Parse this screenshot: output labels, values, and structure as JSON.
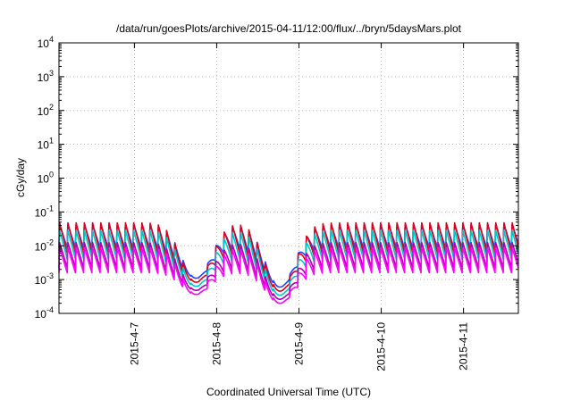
{
  "chart_data": {
    "type": "line",
    "title": "/data/run/goesPlots/archive/2015-04-11/12:00/flux/../bryn/5daysMars.plot",
    "xlabel": "Coordinated Universal Time (UTC)",
    "ylabel": "cGy/day",
    "log_y": true,
    "ylim": [
      0.0001,
      10000
    ],
    "y_tick_exponents": [
      -4,
      -3,
      -2,
      -1,
      0,
      1,
      2,
      3,
      4
    ],
    "y_tick_base": "10",
    "xlim": [
      "2015-04-06T02:00",
      "2015-04-11T16:00"
    ],
    "x_ticks": [
      {
        "date": "2015-04-07T00:00",
        "label": "2015-4-7"
      },
      {
        "date": "2015-04-08T00:00",
        "label": "2015-4-8"
      },
      {
        "date": "2015-04-09T00:00",
        "label": "2015-4-9"
      },
      {
        "date": "2015-04-10T00:00",
        "label": "2015-4-10"
      },
      {
        "date": "2015-04-11T00:00",
        "label": "2015-4-11"
      }
    ],
    "grid": true,
    "cycle_hours": 2.4,
    "series": [
      {
        "color": "#1f44ff",
        "peak": 0.045,
        "trough": 0.0085
      },
      {
        "color": "#e0001b",
        "peak": 0.05,
        "trough": 0.006
      },
      {
        "color": "#00c8c8",
        "peak": 0.03,
        "trough": 0.004
      },
      {
        "color": "#b000b0",
        "peak": 0.013,
        "trough": 0.0022
      },
      {
        "color": "#ff00ff",
        "peak": 0.009,
        "trough": 0.0016
      }
    ],
    "dips": [
      {
        "date": "2015-04-07T18:00",
        "value": 0.0011
      },
      {
        "date": "2015-04-08T18:30",
        "value": 0.0006
      }
    ]
  }
}
